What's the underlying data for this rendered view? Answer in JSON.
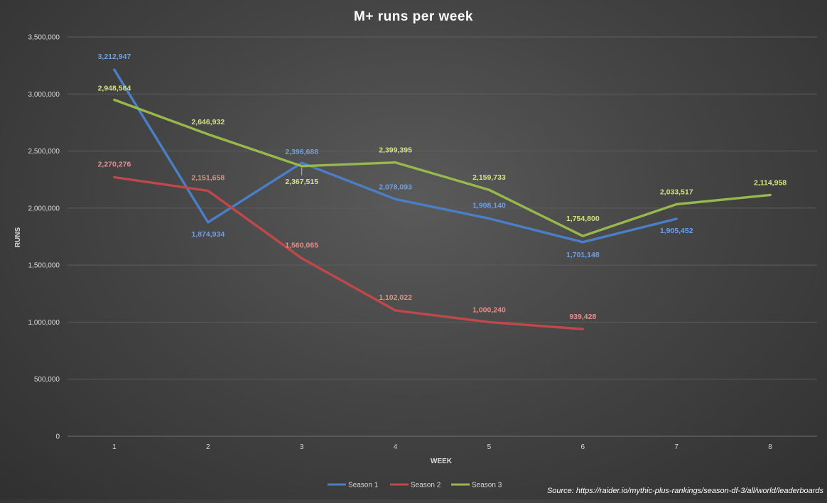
{
  "chart_data": {
    "type": "line",
    "title": "M+ runs  per week",
    "xlabel": "WEEK",
    "ylabel": "RUNS",
    "categories": [
      "1",
      "2",
      "3",
      "4",
      "5",
      "6",
      "7",
      "8"
    ],
    "ylim": [
      0,
      3500000
    ],
    "yticks": [
      0,
      500000,
      1000000,
      1500000,
      2000000,
      2500000,
      3000000,
      3500000
    ],
    "ytick_labels": [
      "0",
      "500,000",
      "1,000,000",
      "1,500,000",
      "2,000,000",
      "2,500,000",
      "3,000,000",
      "3,500,000"
    ],
    "grid": true,
    "legend_position": "bottom",
    "series": [
      {
        "name": "Season 1",
        "color": "#4a7fc8",
        "label_color": "#6f9fe0",
        "values": [
          3212947,
          1874934,
          2396688,
          2078093,
          1908140,
          1701148,
          1905452,
          null
        ],
        "labels": [
          "3,212,947",
          "1,874,934",
          "2,396,688",
          "2,078,093",
          "1,908,140",
          "1,701,148",
          "1,905,452",
          null
        ]
      },
      {
        "name": "Season 2",
        "color": "#c0474a",
        "label_color": "#e58c88",
        "values": [
          2270276,
          2151658,
          1560065,
          1102022,
          1000240,
          939428,
          null,
          null
        ],
        "labels": [
          "2,270,276",
          "2,151,658",
          "1,560,065",
          "1,102,022",
          "1,000,240",
          "939,428",
          null,
          null
        ]
      },
      {
        "name": "Season 3",
        "color": "#97b94c",
        "label_color": "#d3e27e",
        "values": [
          2948564,
          2646932,
          2367515,
          2399395,
          2159733,
          1754800,
          2033517,
          2114958
        ],
        "labels": [
          "2,948,564",
          "2,646,932",
          "2,367,515",
          "2,399,395",
          "2,159,733",
          "1,754,800",
          "2,033,517",
          "2,114,958"
        ]
      }
    ],
    "source": "Source: https://raider.io/mythic-plus-rankings/season-df-3/all/world/leaderboards"
  }
}
